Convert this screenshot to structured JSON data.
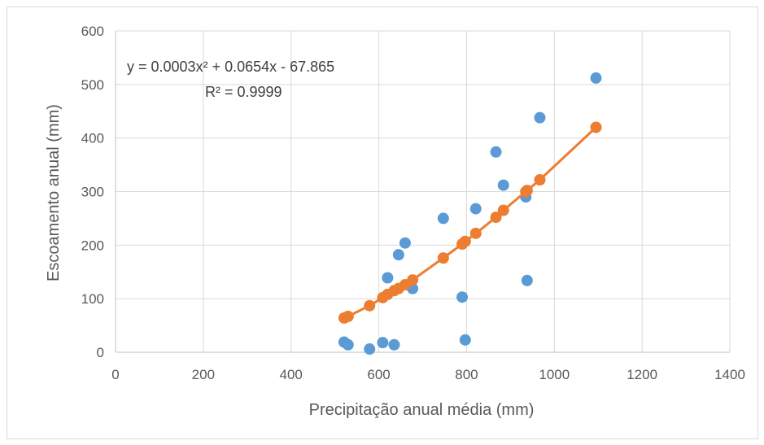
{
  "chart_data": {
    "type": "scatter",
    "title": "",
    "xlabel": "Precipitação anual média (mm)",
    "ylabel": "Escoamento anual (mm)",
    "xlim": [
      0,
      1400
    ],
    "ylim": [
      0,
      600
    ],
    "xticks": [
      0,
      200,
      400,
      600,
      800,
      1000,
      1200,
      1400
    ],
    "yticks": [
      0,
      100,
      200,
      300,
      400,
      500,
      600
    ],
    "xtick_labels": [
      "0",
      "200",
      "400",
      "600",
      "800",
      "1000",
      "1200",
      "1400"
    ],
    "ytick_labels": [
      "0",
      "100",
      "200",
      "300",
      "400",
      "500",
      "600"
    ],
    "grid": true,
    "legend": "none",
    "series": [
      {
        "color": "#5b9bd5",
        "marker": "circle",
        "line": false,
        "points": [
          {
            "x": 521,
            "y": 19
          },
          {
            "x": 530,
            "y": 14
          },
          {
            "x": 579,
            "y": 6
          },
          {
            "x": 609,
            "y": 18
          },
          {
            "x": 620,
            "y": 139
          },
          {
            "x": 635,
            "y": 14
          },
          {
            "x": 645,
            "y": 182
          },
          {
            "x": 660,
            "y": 204
          },
          {
            "x": 677,
            "y": 119
          },
          {
            "x": 747,
            "y": 250
          },
          {
            "x": 790,
            "y": 103
          },
          {
            "x": 797,
            "y": 23
          },
          {
            "x": 821,
            "y": 268
          },
          {
            "x": 867,
            "y": 374
          },
          {
            "x": 884,
            "y": 312
          },
          {
            "x": 935,
            "y": 290
          },
          {
            "x": 938,
            "y": 134
          },
          {
            "x": 967,
            "y": 438
          },
          {
            "x": 1095,
            "y": 512
          }
        ]
      },
      {
        "color": "#ed7d31",
        "marker": "circle",
        "line": true,
        "points": [
          {
            "x": 521,
            "y": 64
          },
          {
            "x": 530,
            "y": 67
          },
          {
            "x": 579,
            "y": 87
          },
          {
            "x": 609,
            "y": 102
          },
          {
            "x": 620,
            "y": 108
          },
          {
            "x": 635,
            "y": 115
          },
          {
            "x": 645,
            "y": 119
          },
          {
            "x": 660,
            "y": 126
          },
          {
            "x": 677,
            "y": 135
          },
          {
            "x": 747,
            "y": 176
          },
          {
            "x": 790,
            "y": 202
          },
          {
            "x": 797,
            "y": 207
          },
          {
            "x": 821,
            "y": 222
          },
          {
            "x": 867,
            "y": 252
          },
          {
            "x": 884,
            "y": 265
          },
          {
            "x": 935,
            "y": 300
          },
          {
            "x": 938,
            "y": 302
          },
          {
            "x": 967,
            "y": 322
          },
          {
            "x": 1095,
            "y": 420
          }
        ]
      }
    ],
    "annotations": {
      "equation": "y = 0.0003x² + 0.0654x - 67.865",
      "r_squared": "R² = 0.9999"
    }
  }
}
